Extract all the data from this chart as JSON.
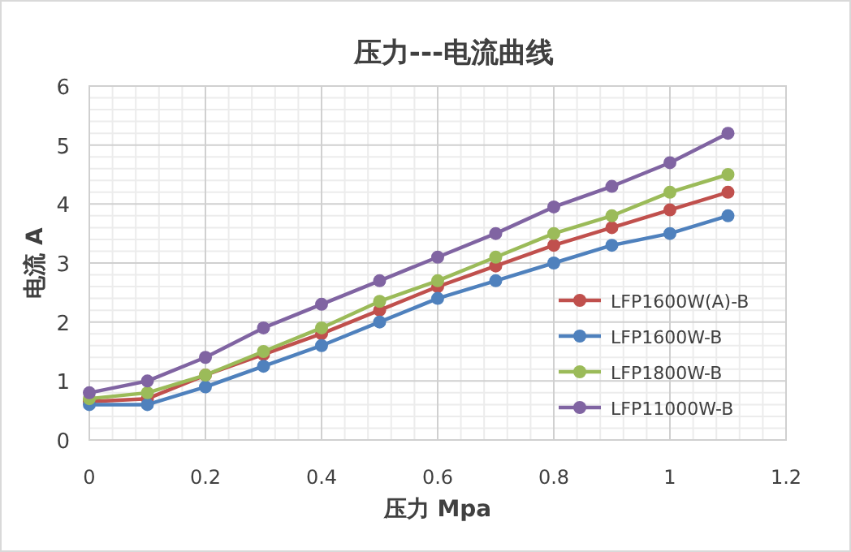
{
  "chart_data": {
    "type": "line",
    "title": "压力---电流曲线",
    "xlabel": "压力 Mpa",
    "ylabel": "电流 A",
    "x": [
      0,
      0.1,
      0.2,
      0.3,
      0.4,
      0.5,
      0.6,
      0.7,
      0.8,
      0.9,
      1.0,
      1.1
    ],
    "series": [
      {
        "name": "LFP1600W(A)-B",
        "color": "#c0504d",
        "values": [
          0.65,
          0.7,
          1.1,
          1.45,
          1.8,
          2.2,
          2.6,
          2.95,
          3.3,
          3.6,
          3.9,
          4.2
        ]
      },
      {
        "name": "LFP1600W-B",
        "color": "#4f81bd",
        "values": [
          0.6,
          0.6,
          0.9,
          1.25,
          1.6,
          2.0,
          2.4,
          2.7,
          3.0,
          3.3,
          3.5,
          3.8
        ]
      },
      {
        "name": "LFP1800W-B",
        "color": "#9bbb59",
        "values": [
          0.7,
          0.8,
          1.1,
          1.5,
          1.9,
          2.35,
          2.7,
          3.1,
          3.5,
          3.8,
          4.2,
          4.5
        ]
      },
      {
        "name": "LFP11000W-B",
        "color": "#8064a2",
        "values": [
          0.8,
          1.0,
          1.4,
          1.9,
          2.3,
          2.7,
          3.1,
          3.5,
          3.95,
          4.3,
          4.7,
          5.2
        ]
      }
    ],
    "xlim": [
      0,
      1.2
    ],
    "xticks": [
      0,
      0.2,
      0.4,
      0.6,
      0.8,
      1,
      1.2
    ],
    "ylim": [
      0,
      6
    ],
    "yticks": [
      0,
      1,
      2,
      3,
      4,
      5,
      6
    ],
    "grid": true,
    "legend": "bottom right",
    "marker": "circle",
    "line_style": "solid"
  }
}
